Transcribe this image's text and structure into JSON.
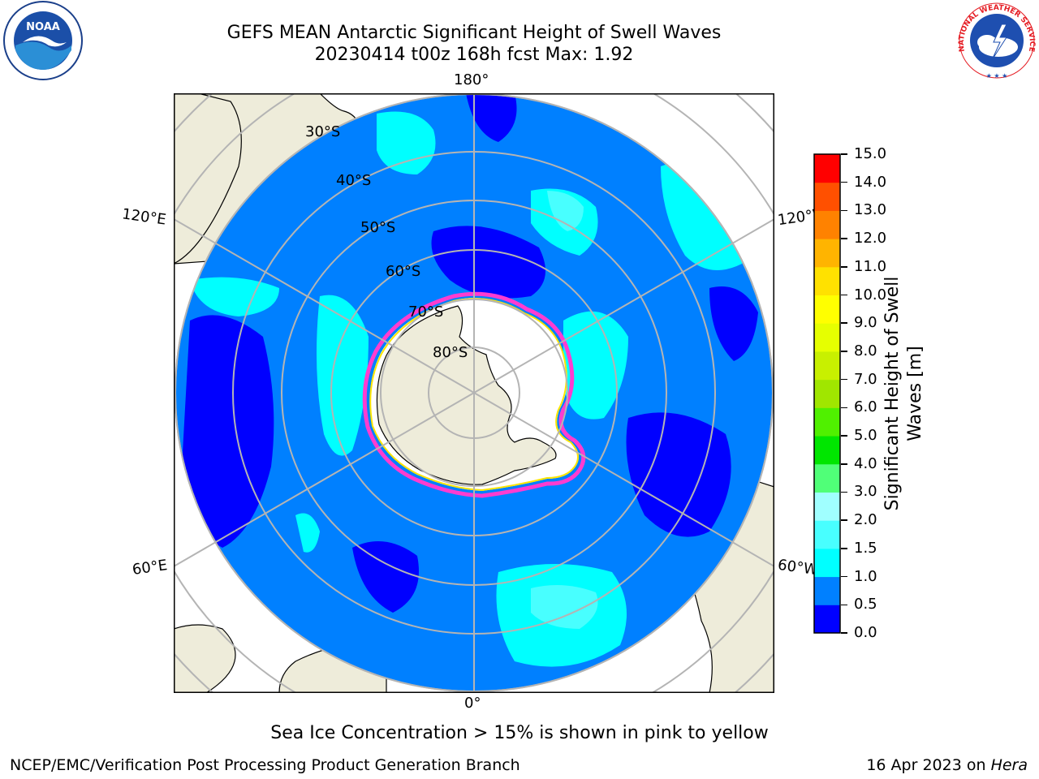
{
  "title": {
    "line1": "GEFS MEAN Antarctic Significant Height of Swell Waves",
    "line2": "20230414 t00z 168h fcst   Max: 1.92"
  },
  "logos": {
    "noara": {
      "label": "NOAA",
      "icon": "noaa-logo"
    },
    "nws": {
      "label": "NATIONAL WEATHER SERVICE",
      "icon": "nws-logo"
    }
  },
  "map": {
    "longitude_labels": {
      "top": "180°",
      "bottom": "0°",
      "upper_left": "120°E",
      "upper_right": "120°W",
      "lower_left": "60°E",
      "lower_right": "60°W"
    },
    "latitude_labels": [
      "30°S",
      "40°S",
      "50°S",
      "60°S",
      "70°S",
      "80°S"
    ],
    "colors": {
      "land": "#eeecda",
      "ice_shelf": "#ffffff",
      "grid": "#b4b4b4",
      "sea_ice_edge_pink": "#ff3cd0",
      "sea_ice_edge_yellow": "#ffe600"
    }
  },
  "colorbar": {
    "label_line1": "Significant Height of Swell",
    "label_line2": "Waves [m]",
    "ticks": [
      "0.0",
      "0.5",
      "1.0",
      "1.5",
      "2.0",
      "3.0",
      "4.0",
      "5.0",
      "6.0",
      "7.0",
      "8.0",
      "9.0",
      "10.0",
      "11.0",
      "12.0",
      "13.0",
      "14.0",
      "15.0"
    ],
    "colors": [
      "#0000ff",
      "#0080ff",
      "#00ffff",
      "#48ffff",
      "#a0ffff",
      "#50ff78",
      "#00e600",
      "#50f000",
      "#a0e600",
      "#c8f000",
      "#e6ff00",
      "#ffff00",
      "#ffe100",
      "#ffb400",
      "#ff8200",
      "#ff5000",
      "#ff0000"
    ]
  },
  "footer": {
    "note": "Sea Ice Concentration > 15% is shown in pink to yellow",
    "left": "NCEP/EMC/Verification Post Processing Product Generation Branch",
    "right_prefix": "16 Apr 2023 on ",
    "right_machine": "Hera"
  }
}
